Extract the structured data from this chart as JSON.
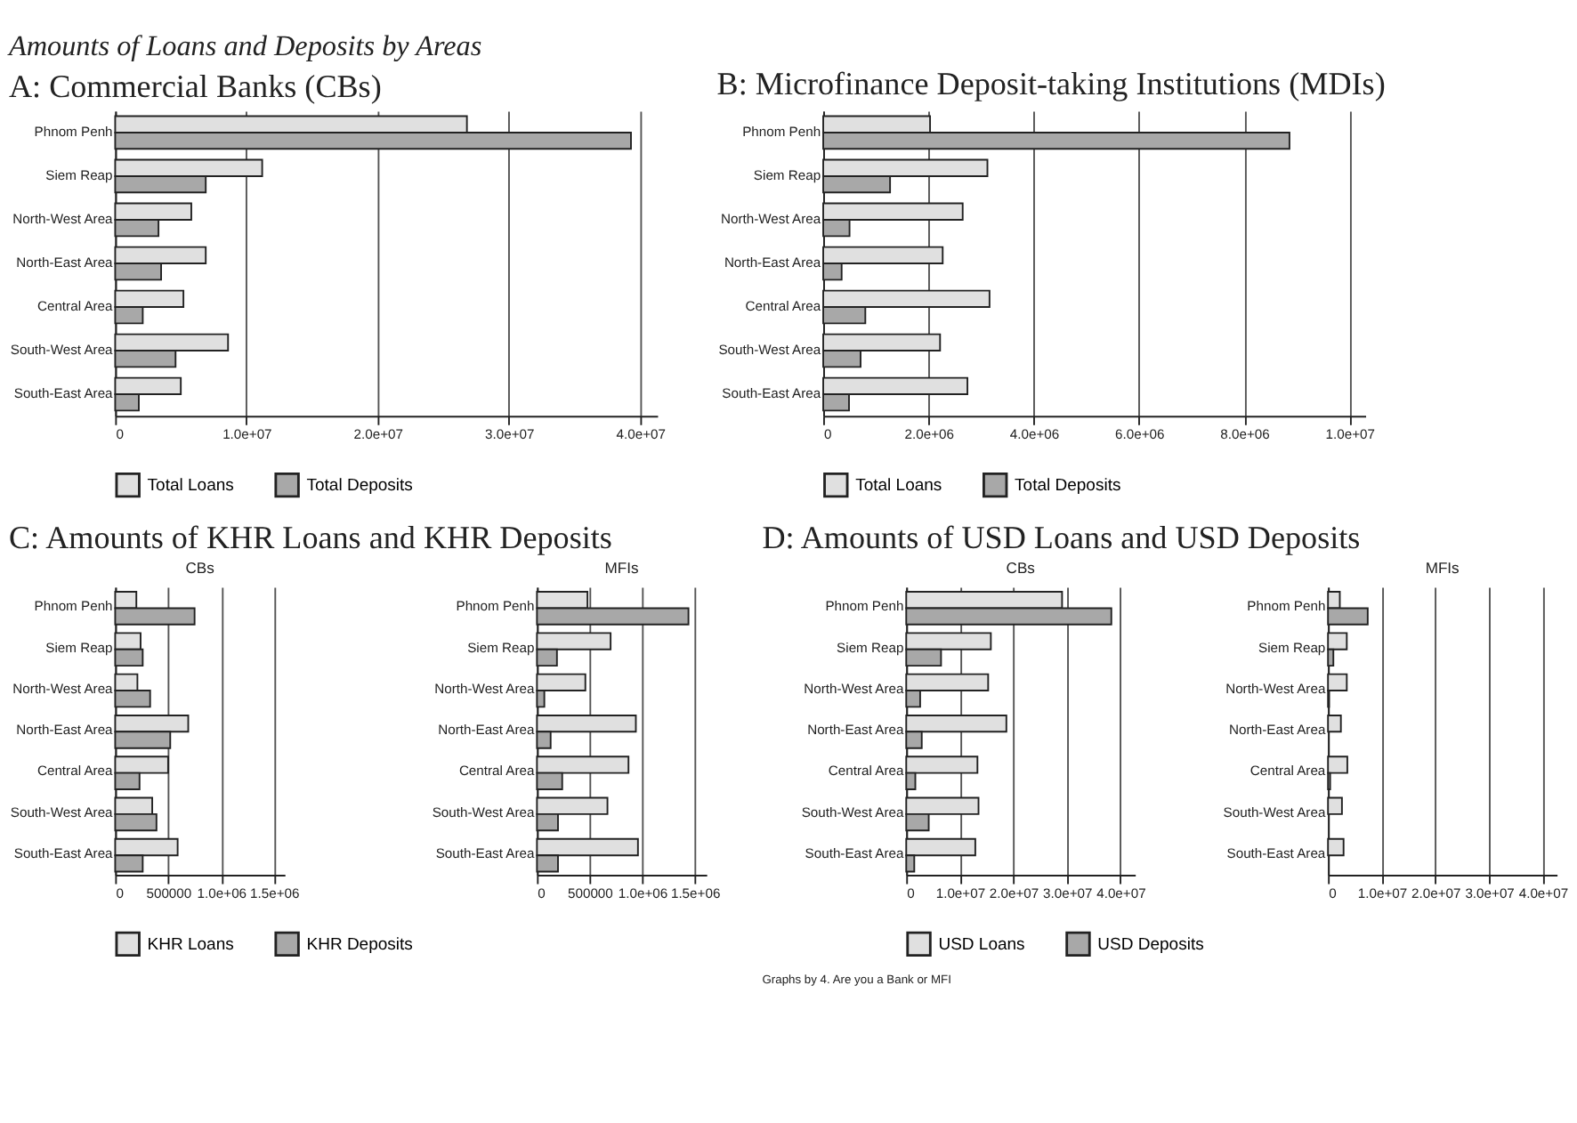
{
  "chart_data": [
    {
      "type": "bar",
      "orientation": "horizontal",
      "title": "Amounts of Loans and Deposits by Areas",
      "subtitle": "A: Commercial Banks (CBs)",
      "categories": [
        "Phnom Penh",
        "Siem Reap",
        "North-West Area",
        "North-East Area",
        "Central Area",
        "South-West Area",
        "South-East Area"
      ],
      "series": [
        {
          "name": "Total Loans",
          "color": "#e0e0e0",
          "values": [
            26800000,
            11200000,
            5800000,
            6900000,
            5200000,
            8600000,
            5000000
          ]
        },
        {
          "name": "Total Deposits",
          "color": "#a8a8a8",
          "values": [
            39300000,
            6900000,
            3300000,
            3500000,
            2100000,
            4600000,
            1800000
          ]
        }
      ],
      "xlim": [
        0,
        41300000
      ],
      "xticks": [
        0,
        {
          "value": 10000000,
          "label": "1.0e+07"
        },
        {
          "value": 20000000,
          "label": "2.0e+07"
        },
        {
          "value": 30000000,
          "label": "3.0e+07"
        },
        {
          "value": 40000000,
          "label": "4.0e+07"
        }
      ],
      "grid": "x",
      "legend": "bottom"
    },
    {
      "type": "bar",
      "orientation": "horizontal",
      "subtitle": "B: Microfinance Deposit-taking Institutions (MDIs)",
      "categories": [
        "Phnom Penh",
        "Siem Reap",
        "North-West Area",
        "North-East Area",
        "Central Area",
        "South-West Area",
        "South-East Area"
      ],
      "series": [
        {
          "name": "Total Loans",
          "color": "#e0e0e0",
          "values": [
            2030000,
            3120000,
            2650000,
            2270000,
            3160000,
            2220000,
            2740000
          ]
        },
        {
          "name": "Total Deposits",
          "color": "#a8a8a8",
          "values": [
            8860000,
            1270000,
            500000,
            350000,
            800000,
            710000,
            490000
          ]
        }
      ],
      "xlim": [
        0,
        10300000
      ],
      "xticks": [
        0,
        {
          "value": 2000000,
          "label": "2.0e+06"
        },
        {
          "value": 4000000,
          "label": "4.0e+06"
        },
        {
          "value": 6000000,
          "label": "6.0e+06"
        },
        {
          "value": 8000000,
          "label": "8.0e+06"
        },
        {
          "value": 10000000,
          "label": "1.0e+07"
        }
      ],
      "grid": "x",
      "legend": "bottom"
    },
    {
      "type": "bar",
      "orientation": "horizontal",
      "title": "C: Amounts of KHR Loans and KHR Deposits",
      "subtitle": "CBs",
      "categories": [
        "Phnom Penh",
        "Siem Reap",
        "North-West Area",
        "North-East Area",
        "Central Area",
        "South-West Area",
        "South-East Area"
      ],
      "series": [
        {
          "name": "KHR Loans",
          "color": "#e0e0e0",
          "values": [
            200000,
            240000,
            210000,
            690000,
            500000,
            350000,
            590000
          ]
        },
        {
          "name": "KHR Deposits",
          "color": "#a8a8a8",
          "values": [
            750000,
            260000,
            330000,
            520000,
            230000,
            390000,
            260000
          ]
        }
      ],
      "xlim": [
        0,
        1600000
      ],
      "xticks": [
        0,
        500000,
        {
          "value": 1000000,
          "label": "1.0e+06"
        },
        {
          "value": 1500000,
          "label": "1.5e+06"
        }
      ],
      "grid": "x",
      "legend": "bottom"
    },
    {
      "type": "bar",
      "orientation": "horizontal",
      "subtitle": "MFIs",
      "categories": [
        "Phnom Penh",
        "Siem Reap",
        "North-West Area",
        "North-East Area",
        "Central Area",
        "South-West Area",
        "South-East Area"
      ],
      "series": [
        {
          "color": "#e0e0e0",
          "values": [
            480000,
            700000,
            460000,
            940000,
            870000,
            670000,
            960000
          ]
        },
        {
          "color": "#a8a8a8",
          "values": [
            1440000,
            190000,
            70000,
            130000,
            240000,
            200000,
            200000
          ]
        }
      ],
      "xlim": [
        0,
        1610000
      ],
      "xticks": [
        0,
        500000,
        {
          "value": 1000000,
          "label": "1.0e+06"
        },
        {
          "value": 1500000,
          "label": "1.5e+06"
        }
      ],
      "grid": "x"
    },
    {
      "type": "bar",
      "orientation": "horizontal",
      "title": "D: Amounts of USD Loans and USD Deposits",
      "subtitle": "CBs",
      "categories": [
        "Phnom Penh",
        "Siem Reap",
        "North-West Area",
        "North-East Area",
        "Central Area",
        "South-West Area",
        "South-East Area"
      ],
      "series": [
        {
          "name": "USD Loans",
          "color": "#e0e0e0",
          "values": [
            29100000,
            15800000,
            15300000,
            18700000,
            13300000,
            13500000,
            12900000
          ]
        },
        {
          "name": "USD Deposits",
          "color": "#a8a8a8",
          "values": [
            38300000,
            6500000,
            2600000,
            2900000,
            1700000,
            4200000,
            1500000
          ]
        }
      ],
      "xlim": [
        0,
        42700000
      ],
      "xticks": [
        0,
        {
          "value": 10000000,
          "label": "1.0e+07"
        },
        {
          "value": 20000000,
          "label": "2.0e+07"
        },
        {
          "value": 30000000,
          "label": "3.0e+07"
        },
        {
          "value": 40000000,
          "label": "4.0e+07"
        }
      ],
      "grid": "x",
      "legend": "bottom",
      "annotations": [
        "Graphs by 4. Are you a Bank or MFI"
      ]
    },
    {
      "type": "bar",
      "orientation": "horizontal",
      "subtitle": "MFIs",
      "categories": [
        "Phnom Penh",
        "Siem Reap",
        "North-West Area",
        "North-East Area",
        "Central Area",
        "South-West Area",
        "South-East Area"
      ],
      "series": [
        {
          "color": "#e0e0e0",
          "values": [
            2200000,
            3500000,
            3500000,
            2400000,
            3600000,
            2600000,
            2900000
          ]
        },
        {
          "color": "#a8a8a8",
          "values": [
            7400000,
            1000000,
            200000,
            null,
            400000,
            null,
            null
          ]
        }
      ],
      "xlim": [
        0,
        42600000
      ],
      "xticks": [
        0,
        {
          "value": 10000000,
          "label": "1.0e+07"
        },
        {
          "value": 20000000,
          "label": "2.0e+07"
        },
        {
          "value": 30000000,
          "label": "3.0e+07"
        },
        {
          "value": 40000000,
          "label": "4.0e+07"
        }
      ],
      "grid": "x"
    }
  ]
}
